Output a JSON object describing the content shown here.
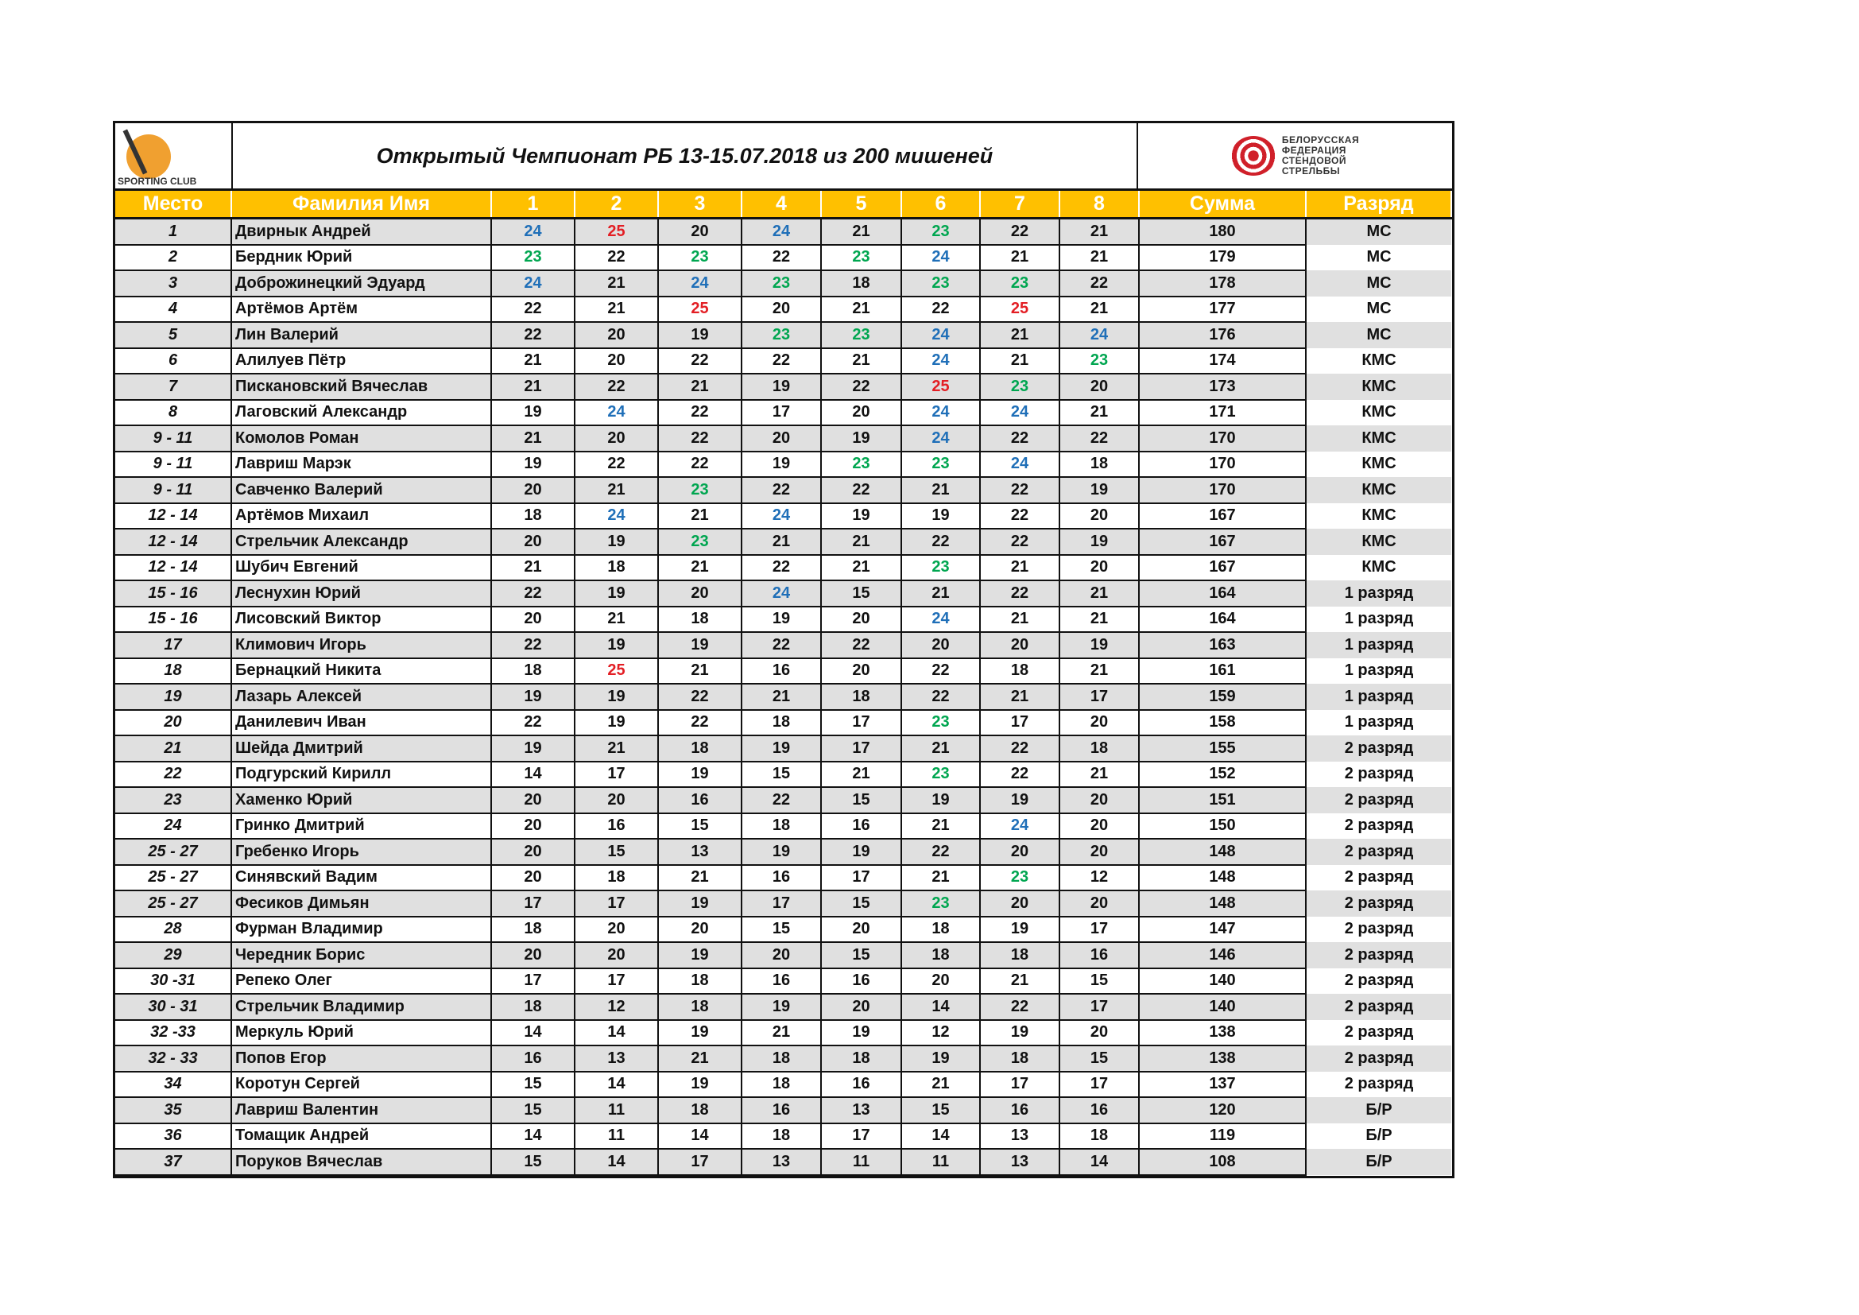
{
  "header": {
    "title": "Открытый Чемпионат  РБ  13-15.07.2018 из 200 мишеней",
    "left_logo_text": "SPORTING CLUB",
    "right_logo_text": [
      "БЕЛОРУССКАЯ",
      "ФЕДЕРАЦИЯ",
      "СТЕНДОВОЙ",
      "СТРЕЛЬБЫ"
    ]
  },
  "colors": {
    "header_bg": "#ffc000",
    "alt_row": "#e0e0e0",
    "score_23": "#00a650",
    "score_24": "#1f6fb8",
    "score_25": "#e31e24"
  },
  "columns": [
    "Место",
    "Фамилия Имя",
    "1",
    "2",
    "3",
    "4",
    "5",
    "6",
    "7",
    "8",
    "Сумма",
    "Разряд"
  ],
  "rows": [
    {
      "place": "1",
      "name": "Двирнык Андрей",
      "scores": [
        24,
        25,
        20,
        24,
        21,
        23,
        22,
        21
      ],
      "sum": 180,
      "rank": "МС"
    },
    {
      "place": "2",
      "name": "Бердник Юрий",
      "scores": [
        23,
        22,
        23,
        22,
        23,
        24,
        21,
        21
      ],
      "sum": 179,
      "rank": "МС"
    },
    {
      "place": "3",
      "name": "Доброжинецкий Эдуард",
      "scores": [
        24,
        21,
        24,
        23,
        18,
        23,
        23,
        22
      ],
      "sum": 178,
      "rank": "МС"
    },
    {
      "place": "4",
      "name": "Артёмов Артём",
      "scores": [
        22,
        21,
        25,
        20,
        21,
        22,
        25,
        21
      ],
      "sum": 177,
      "rank": "МС"
    },
    {
      "place": "5",
      "name": "Лин Валерий",
      "scores": [
        22,
        20,
        19,
        23,
        23,
        24,
        21,
        24
      ],
      "sum": 176,
      "rank": "МС"
    },
    {
      "place": "6",
      "name": "Алилуев Пётр",
      "scores": [
        21,
        20,
        22,
        22,
        21,
        24,
        21,
        23
      ],
      "sum": 174,
      "rank": "КМС"
    },
    {
      "place": "7",
      "name": "Пискановский Вячеслав",
      "scores": [
        21,
        22,
        21,
        19,
        22,
        25,
        23,
        20
      ],
      "sum": 173,
      "rank": "КМС"
    },
    {
      "place": "8",
      "name": "Лаговский Александр",
      "scores": [
        19,
        24,
        22,
        17,
        20,
        24,
        24,
        21
      ],
      "sum": 171,
      "rank": "КМС"
    },
    {
      "place": "9 - 11",
      "name": "Комолов Роман",
      "scores": [
        21,
        20,
        22,
        20,
        19,
        24,
        22,
        22
      ],
      "sum": 170,
      "rank": "КМС"
    },
    {
      "place": "9 - 11",
      "name": "Лавриш Марэк",
      "scores": [
        19,
        22,
        22,
        19,
        23,
        23,
        24,
        18
      ],
      "sum": 170,
      "rank": "КМС"
    },
    {
      "place": "9 - 11",
      "name": "Савченко Валерий",
      "scores": [
        20,
        21,
        23,
        22,
        22,
        21,
        22,
        19
      ],
      "sum": 170,
      "rank": "КМС"
    },
    {
      "place": "12 - 14",
      "name": "Артёмов Михаил",
      "scores": [
        18,
        24,
        21,
        24,
        19,
        19,
        22,
        20
      ],
      "sum": 167,
      "rank": "КМС"
    },
    {
      "place": "12 - 14",
      "name": "Стрельчик Александр",
      "scores": [
        20,
        19,
        23,
        21,
        21,
        22,
        22,
        19
      ],
      "sum": 167,
      "rank": "КМС"
    },
    {
      "place": "12 - 14",
      "name": "Шубич Евгений",
      "scores": [
        21,
        18,
        21,
        22,
        21,
        23,
        21,
        20
      ],
      "sum": 167,
      "rank": "КМС"
    },
    {
      "place": "15 - 16",
      "name": "Леснухин Юрий",
      "scores": [
        22,
        19,
        20,
        24,
        15,
        21,
        22,
        21
      ],
      "sum": 164,
      "rank": "1 разряд"
    },
    {
      "place": "15 - 16",
      "name": "Лисовский Виктор",
      "scores": [
        20,
        21,
        18,
        19,
        20,
        24,
        21,
        21
      ],
      "sum": 164,
      "rank": "1 разряд"
    },
    {
      "place": "17",
      "name": "Климович Игорь",
      "scores": [
        22,
        19,
        19,
        22,
        22,
        20,
        20,
        19
      ],
      "sum": 163,
      "rank": "1 разряд"
    },
    {
      "place": "18",
      "name": "Бернацкий Никита",
      "scores": [
        18,
        25,
        21,
        16,
        20,
        22,
        18,
        21
      ],
      "sum": 161,
      "rank": "1 разряд"
    },
    {
      "place": "19",
      "name": "Лазарь Алексей",
      "scores": [
        19,
        19,
        22,
        21,
        18,
        22,
        21,
        17
      ],
      "sum": 159,
      "rank": "1 разряд"
    },
    {
      "place": "20",
      "name": "Данилевич Иван",
      "scores": [
        22,
        19,
        22,
        18,
        17,
        23,
        17,
        20
      ],
      "sum": 158,
      "rank": "1 разряд"
    },
    {
      "place": "21",
      "name": "Шейда Дмитрий",
      "scores": [
        19,
        21,
        18,
        19,
        17,
        21,
        22,
        18
      ],
      "sum": 155,
      "rank": "2 разряд"
    },
    {
      "place": "22",
      "name": "Подгурский Кирилл",
      "scores": [
        14,
        17,
        19,
        15,
        21,
        23,
        22,
        21
      ],
      "sum": 152,
      "rank": "2 разряд"
    },
    {
      "place": "23",
      "name": "Хаменко Юрий",
      "scores": [
        20,
        20,
        16,
        22,
        15,
        19,
        19,
        20
      ],
      "sum": 151,
      "rank": "2 разряд"
    },
    {
      "place": "24",
      "name": "Гринко Дмитрий",
      "scores": [
        20,
        16,
        15,
        18,
        16,
        21,
        24,
        20
      ],
      "sum": 150,
      "rank": "2 разряд"
    },
    {
      "place": "25 - 27",
      "name": "Гребенко Игорь",
      "scores": [
        20,
        15,
        13,
        19,
        19,
        22,
        20,
        20
      ],
      "sum": 148,
      "rank": "2 разряд"
    },
    {
      "place": "25 - 27",
      "name": "Синявский Вадим",
      "scores": [
        20,
        18,
        21,
        16,
        17,
        21,
        23,
        12
      ],
      "sum": 148,
      "rank": "2 разряд"
    },
    {
      "place": "25 - 27",
      "name": "Фесиков Димьян",
      "scores": [
        17,
        17,
        19,
        17,
        15,
        23,
        20,
        20
      ],
      "sum": 148,
      "rank": "2 разряд"
    },
    {
      "place": "28",
      "name": "Фурман Владимир",
      "scores": [
        18,
        20,
        20,
        15,
        20,
        18,
        19,
        17
      ],
      "sum": 147,
      "rank": "2 разряд"
    },
    {
      "place": "29",
      "name": "Чередник Борис",
      "scores": [
        20,
        20,
        19,
        20,
        15,
        18,
        18,
        16
      ],
      "sum": 146,
      "rank": "2 разряд"
    },
    {
      "place": "30 -31",
      "name": "Репеко Олег",
      "scores": [
        17,
        17,
        18,
        16,
        16,
        20,
        21,
        15
      ],
      "sum": 140,
      "rank": "2 разряд"
    },
    {
      "place": "30 - 31",
      "name": "Стрельчик Владимир",
      "scores": [
        18,
        12,
        18,
        19,
        20,
        14,
        22,
        17
      ],
      "sum": 140,
      "rank": "2 разряд"
    },
    {
      "place": "32 -33",
      "name": "Меркуль Юрий",
      "scores": [
        14,
        14,
        19,
        21,
        19,
        12,
        19,
        20
      ],
      "sum": 138,
      "rank": "2 разряд"
    },
    {
      "place": "32 - 33",
      "name": "Попов Егор",
      "scores": [
        16,
        13,
        21,
        18,
        18,
        19,
        18,
        15
      ],
      "sum": 138,
      "rank": "2 разряд"
    },
    {
      "place": "34",
      "name": "Коротун Сергей",
      "scores": [
        15,
        14,
        19,
        18,
        16,
        21,
        17,
        17
      ],
      "sum": 137,
      "rank": "2 разряд"
    },
    {
      "place": "35",
      "name": "Лавриш Валентин",
      "scores": [
        15,
        11,
        18,
        16,
        13,
        15,
        16,
        16
      ],
      "sum": 120,
      "rank": "Б/Р"
    },
    {
      "place": "36",
      "name": "Томащик Андрей",
      "scores": [
        14,
        11,
        14,
        18,
        17,
        14,
        13,
        18
      ],
      "sum": 119,
      "rank": "Б/Р"
    },
    {
      "place": "37",
      "name": "Поруков Вячеслав",
      "scores": [
        15,
        14,
        17,
        13,
        11,
        11,
        13,
        14
      ],
      "sum": 108,
      "rank": "Б/Р"
    }
  ]
}
